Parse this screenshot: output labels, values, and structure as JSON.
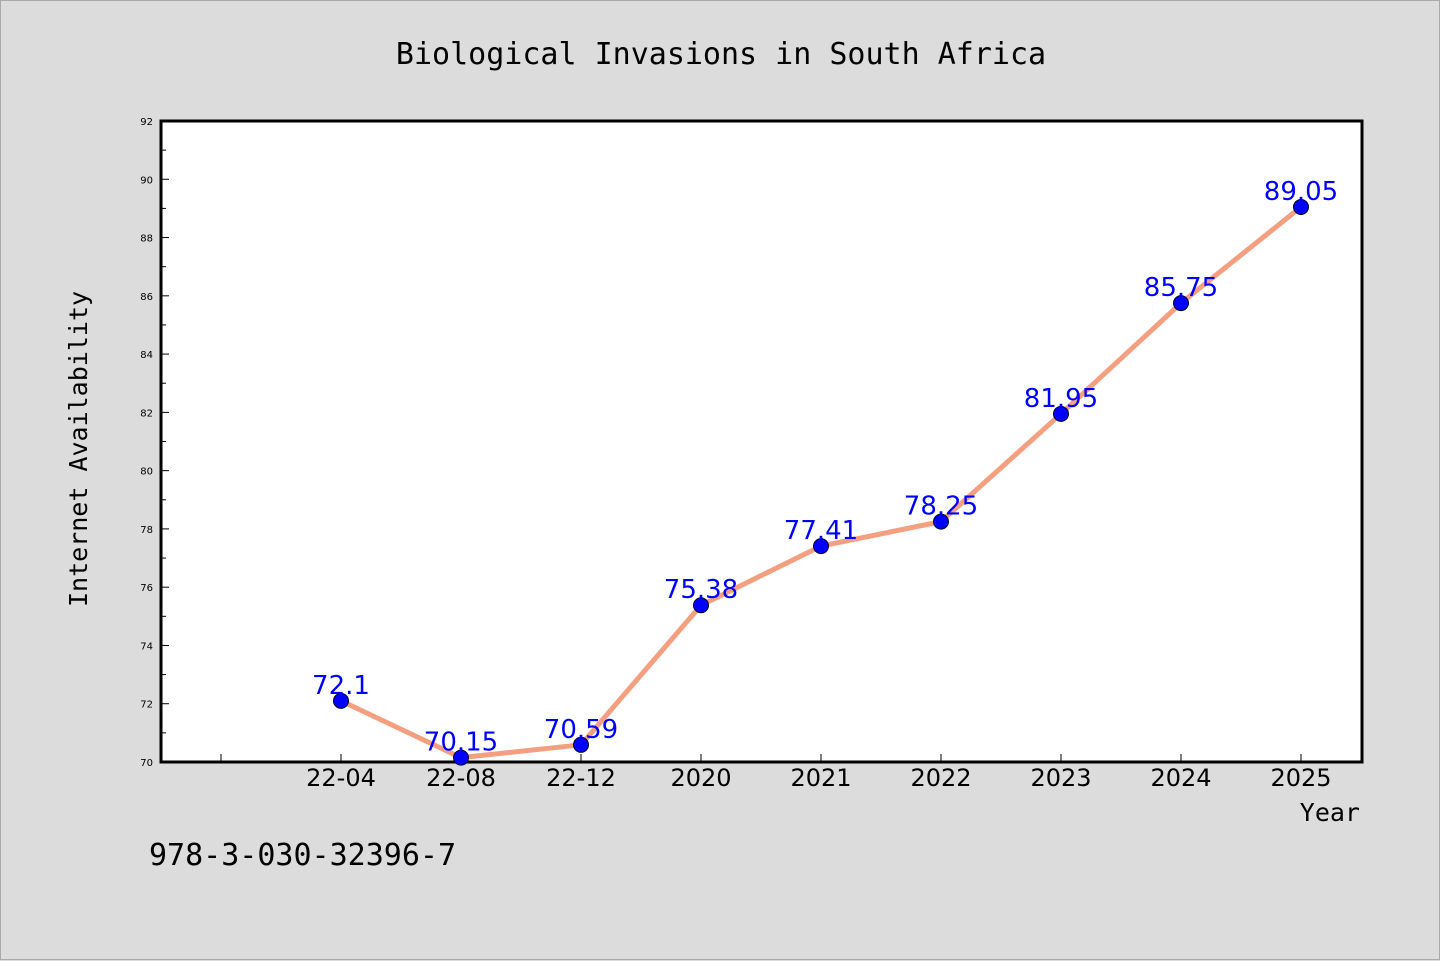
{
  "chart_data": {
    "type": "line",
    "title": "Biological Invasions in South Africa",
    "xlabel": "Year",
    "ylabel": "Internet Availability",
    "categories": [
      "22-04",
      "22-08",
      "22-12",
      "2020",
      "2021",
      "2022",
      "2023",
      "2024",
      "2025"
    ],
    "series": [
      {
        "values": [
          72.1,
          70.15,
          70.59,
          75.38,
          77.41,
          78.25,
          81.95,
          85.75,
          89.05
        ]
      }
    ],
    "data_labels": [
      "72.1",
      "70.15",
      "70.59",
      "75.38",
      "77.41",
      "78.25",
      "81.95",
      "85.75",
      "89.05"
    ],
    "ylim": [
      70,
      92
    ],
    "yticks": [
      "70",
      "72",
      "74",
      "76",
      "78",
      "80",
      "82",
      "84",
      "86",
      "88",
      "90",
      "92"
    ],
    "grid": false,
    "line_color": "#f4a080",
    "marker_color": "#0000ff",
    "label_color": "#0000ff"
  },
  "footer": {
    "isbn": "978-3-030-32396-7"
  }
}
